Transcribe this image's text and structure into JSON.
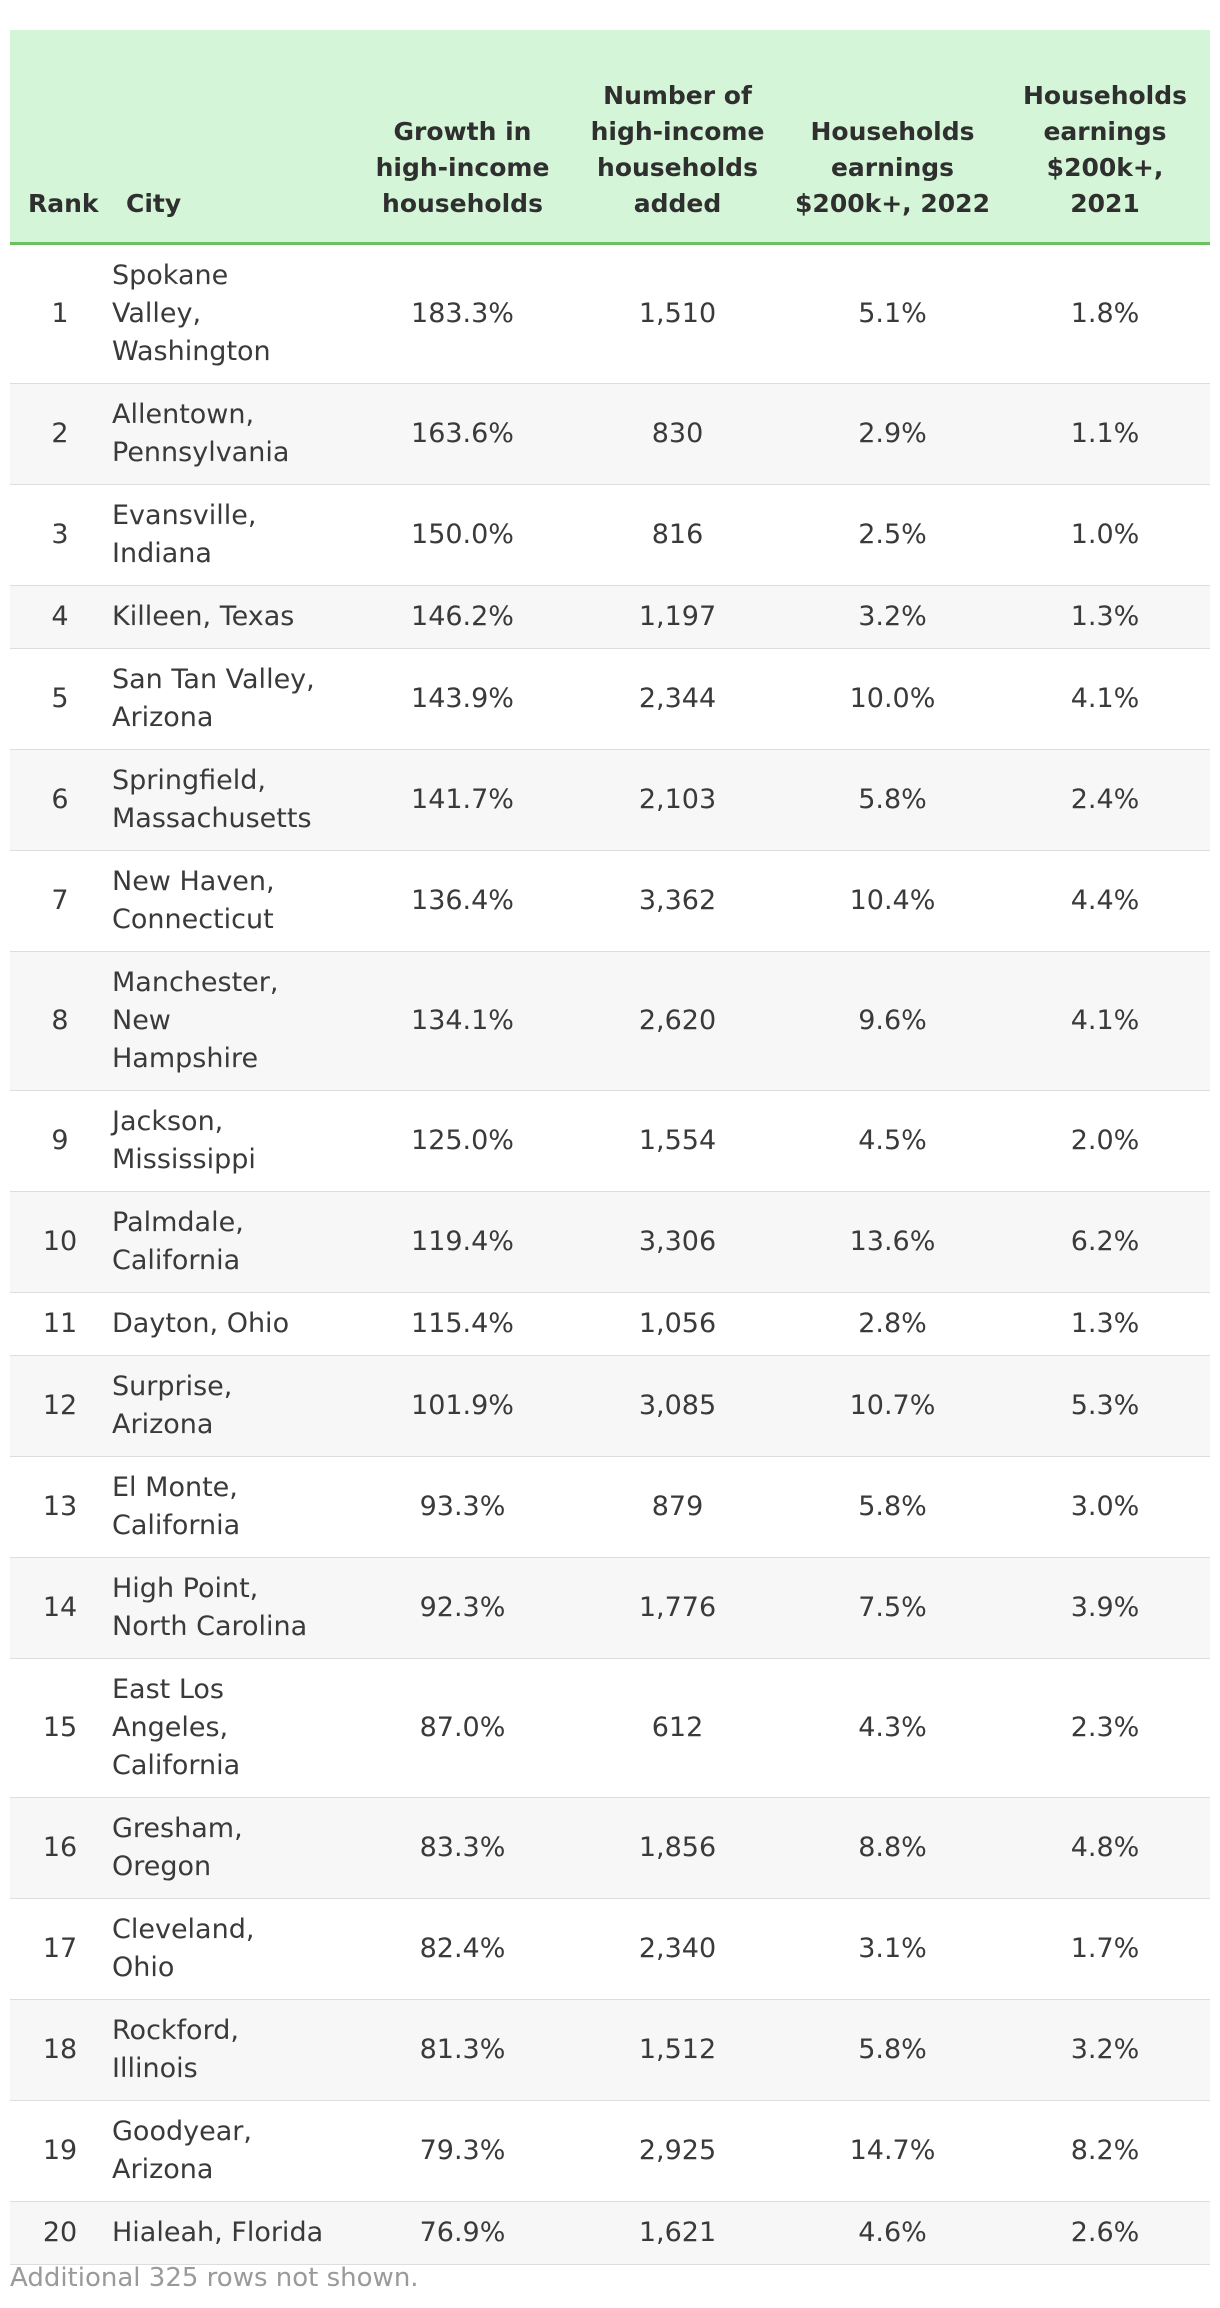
{
  "table": {
    "headers": {
      "rank": "Rank",
      "city": "City",
      "growth": "Growth in high-income households",
      "added": "Number of high-income households added",
      "pct_2022": "Households earnings $200k+, 2022",
      "pct_2021": "Households earnings $200k+, 2021"
    },
    "rows": [
      {
        "rank": "1",
        "city": "Spokane Valley, Washington",
        "growth": "183.3%",
        "added": "1,510",
        "pct_2022": "5.1%",
        "pct_2021": "1.8%"
      },
      {
        "rank": "2",
        "city": "Allentown, Pennsylvania",
        "growth": "163.6%",
        "added": "830",
        "pct_2022": "2.9%",
        "pct_2021": "1.1%"
      },
      {
        "rank": "3",
        "city": "Evansville, Indiana",
        "growth": "150.0%",
        "added": "816",
        "pct_2022": "2.5%",
        "pct_2021": "1.0%"
      },
      {
        "rank": "4",
        "city": "Killeen, Texas",
        "growth": "146.2%",
        "added": "1,197",
        "pct_2022": "3.2%",
        "pct_2021": "1.3%"
      },
      {
        "rank": "5",
        "city": "San Tan Valley, Arizona",
        "growth": "143.9%",
        "added": "2,344",
        "pct_2022": "10.0%",
        "pct_2021": "4.1%"
      },
      {
        "rank": "6",
        "city": "Springfield, Massachusetts",
        "growth": "141.7%",
        "added": "2,103",
        "pct_2022": "5.8%",
        "pct_2021": "2.4%"
      },
      {
        "rank": "7",
        "city": "New Haven, Connecticut",
        "growth": "136.4%",
        "added": "3,362",
        "pct_2022": "10.4%",
        "pct_2021": "4.4%"
      },
      {
        "rank": "8",
        "city": "Manchester, New Hampshire",
        "growth": "134.1%",
        "added": "2,620",
        "pct_2022": "9.6%",
        "pct_2021": "4.1%"
      },
      {
        "rank": "9",
        "city": "Jackson, Mississippi",
        "growth": "125.0%",
        "added": "1,554",
        "pct_2022": "4.5%",
        "pct_2021": "2.0%"
      },
      {
        "rank": "10",
        "city": "Palmdale, California",
        "growth": "119.4%",
        "added": "3,306",
        "pct_2022": "13.6%",
        "pct_2021": "6.2%"
      },
      {
        "rank": "11",
        "city": "Dayton, Ohio",
        "growth": "115.4%",
        "added": "1,056",
        "pct_2022": "2.8%",
        "pct_2021": "1.3%"
      },
      {
        "rank": "12",
        "city": "Surprise, Arizona",
        "growth": "101.9%",
        "added": "3,085",
        "pct_2022": "10.7%",
        "pct_2021": "5.3%"
      },
      {
        "rank": "13",
        "city": "El Monte, California",
        "growth": "93.3%",
        "added": "879",
        "pct_2022": "5.8%",
        "pct_2021": "3.0%"
      },
      {
        "rank": "14",
        "city": "High Point, North Carolina",
        "growth": "92.3%",
        "added": "1,776",
        "pct_2022": "7.5%",
        "pct_2021": "3.9%"
      },
      {
        "rank": "15",
        "city": "East Los Angeles, California",
        "growth": "87.0%",
        "added": "612",
        "pct_2022": "4.3%",
        "pct_2021": "2.3%"
      },
      {
        "rank": "16",
        "city": "Gresham, Oregon",
        "growth": "83.3%",
        "added": "1,856",
        "pct_2022": "8.8%",
        "pct_2021": "4.8%"
      },
      {
        "rank": "17",
        "city": "Cleveland, Ohio",
        "growth": "82.4%",
        "added": "2,340",
        "pct_2022": "3.1%",
        "pct_2021": "1.7%"
      },
      {
        "rank": "18",
        "city": "Rockford, Illinois",
        "growth": "81.3%",
        "added": "1,512",
        "pct_2022": "5.8%",
        "pct_2021": "3.2%"
      },
      {
        "rank": "19",
        "city": "Goodyear, Arizona",
        "growth": "79.3%",
        "added": "2,925",
        "pct_2022": "14.7%",
        "pct_2021": "8.2%"
      },
      {
        "rank": "20",
        "city": "Hialeah, Florida",
        "growth": "76.9%",
        "added": "1,621",
        "pct_2022": "4.6%",
        "pct_2021": "2.6%"
      }
    ],
    "footer_note": "Additional 325 rows not shown."
  },
  "colors": {
    "header_bg": "#d4f5d7",
    "header_border": "#6cc05e",
    "alt_row_bg": "#f7f7f7"
  }
}
